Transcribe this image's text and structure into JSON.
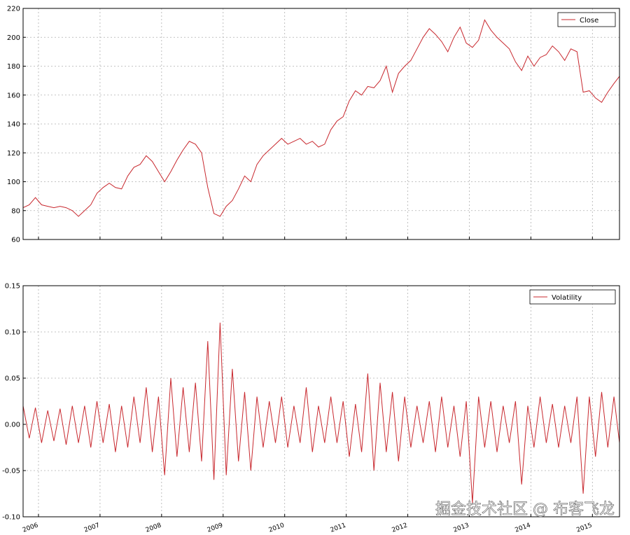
{
  "chart_data": [
    {
      "type": "line",
      "xlim": [
        2005.75,
        2015.44
      ],
      "xticks": [
        2006,
        2007,
        2008,
        2009,
        2010,
        2011,
        2012,
        2013,
        2014,
        2015
      ],
      "ylim": [
        60,
        220
      ],
      "yticks": [
        60,
        80,
        100,
        120,
        140,
        160,
        180,
        200,
        220
      ],
      "grid": true,
      "legend": "upper right",
      "series": [
        {
          "name": "Close",
          "color": "#c8282e",
          "x": [
            2005.75,
            2005.85,
            2005.95,
            2006.05,
            2006.15,
            2006.25,
            2006.35,
            2006.45,
            2006.55,
            2006.65,
            2006.75,
            2006.85,
            2006.95,
            2007.05,
            2007.15,
            2007.25,
            2007.35,
            2007.45,
            2007.55,
            2007.65,
            2007.75,
            2007.85,
            2007.95,
            2008.05,
            2008.15,
            2008.25,
            2008.35,
            2008.45,
            2008.55,
            2008.65,
            2008.75,
            2008.85,
            2008.95,
            2009.05,
            2009.15,
            2009.25,
            2009.35,
            2009.45,
            2009.55,
            2009.65,
            2009.75,
            2009.85,
            2009.95,
            2010.05,
            2010.15,
            2010.25,
            2010.35,
            2010.45,
            2010.55,
            2010.65,
            2010.75,
            2010.85,
            2010.95,
            2011.05,
            2011.15,
            2011.25,
            2011.35,
            2011.45,
            2011.55,
            2011.65,
            2011.75,
            2011.85,
            2011.95,
            2012.05,
            2012.15,
            2012.25,
            2012.35,
            2012.45,
            2012.55,
            2012.65,
            2012.75,
            2012.85,
            2012.95,
            2013.05,
            2013.15,
            2013.25,
            2013.35,
            2013.45,
            2013.55,
            2013.65,
            2013.75,
            2013.85,
            2013.95,
            2014.05,
            2014.15,
            2014.25,
            2014.35,
            2014.45,
            2014.55,
            2014.65,
            2014.75,
            2014.85,
            2014.95,
            2015.05,
            2015.15,
            2015.25,
            2015.35,
            2015.44
          ],
          "values": [
            82,
            84,
            89,
            84,
            83,
            82,
            83,
            82,
            80,
            76,
            80,
            84,
            92,
            96,
            99,
            96,
            95,
            104,
            110,
            112,
            118,
            114,
            107,
            100,
            107,
            115,
            122,
            128,
            126,
            120,
            96,
            78,
            76,
            83,
            87,
            95,
            104,
            100,
            112,
            118,
            122,
            126,
            130,
            126,
            128,
            130,
            126,
            128,
            124,
            126,
            136,
            142,
            145,
            156,
            163,
            160,
            166,
            165,
            170,
            180,
            162,
            175,
            180,
            184,
            192,
            200,
            206,
            202,
            197,
            190,
            200,
            207,
            196,
            193,
            198,
            212,
            205,
            200,
            196,
            192,
            183,
            177,
            187,
            180,
            186,
            188,
            194,
            190,
            184,
            192,
            190,
            162,
            163,
            158,
            155,
            162,
            168,
            173
          ]
        }
      ]
    },
    {
      "type": "line",
      "xlim": [
        2005.75,
        2015.44
      ],
      "xticks": [
        2006,
        2007,
        2008,
        2009,
        2010,
        2011,
        2012,
        2013,
        2014,
        2015
      ],
      "ylim": [
        -0.1,
        0.15
      ],
      "yticks": [
        {
          "value": -0.1,
          "label": "-0.10"
        },
        -0.05,
        {
          "value": 0,
          "label": "0.00"
        },
        0.05,
        {
          "value": 0.1,
          "label": "0.10"
        },
        0.15
      ],
      "grid": true,
      "legend": "upper right",
      "series": [
        {
          "name": "Volatility",
          "color": "#c8282e",
          "x": [
            2005.75,
            2005.85,
            2005.95,
            2006.05,
            2006.15,
            2006.25,
            2006.35,
            2006.45,
            2006.55,
            2006.65,
            2006.75,
            2006.85,
            2006.95,
            2007.05,
            2007.15,
            2007.25,
            2007.35,
            2007.45,
            2007.55,
            2007.65,
            2007.75,
            2007.85,
            2007.95,
            2008.05,
            2008.15,
            2008.25,
            2008.35,
            2008.45,
            2008.55,
            2008.65,
            2008.75,
            2008.85,
            2008.95,
            2009.05,
            2009.15,
            2009.25,
            2009.35,
            2009.45,
            2009.55,
            2009.65,
            2009.75,
            2009.85,
            2009.95,
            2010.05,
            2010.15,
            2010.25,
            2010.35,
            2010.45,
            2010.55,
            2010.65,
            2010.75,
            2010.85,
            2010.95,
            2011.05,
            2011.15,
            2011.25,
            2011.35,
            2011.45,
            2011.55,
            2011.65,
            2011.75,
            2011.85,
            2011.95,
            2012.05,
            2012.15,
            2012.25,
            2012.35,
            2012.45,
            2012.55,
            2012.65,
            2012.75,
            2012.85,
            2012.95,
            2013.05,
            2013.15,
            2013.25,
            2013.35,
            2013.45,
            2013.55,
            2013.65,
            2013.75,
            2013.85,
            2013.95,
            2014.05,
            2014.15,
            2014.25,
            2014.35,
            2014.45,
            2014.55,
            2014.65,
            2014.75,
            2014.85,
            2014.95,
            2015.05,
            2015.15,
            2015.25,
            2015.35,
            2015.44
          ],
          "values": [
            0.02,
            -0.015,
            0.018,
            -0.02,
            0.015,
            -0.018,
            0.017,
            -0.022,
            0.02,
            -0.02,
            0.02,
            -0.025,
            0.025,
            -0.02,
            0.022,
            -0.03,
            0.02,
            -0.025,
            0.03,
            -0.02,
            0.04,
            -0.03,
            0.03,
            -0.055,
            0.05,
            -0.035,
            0.04,
            -0.03,
            0.045,
            -0.04,
            0.09,
            -0.06,
            0.11,
            -0.055,
            0.06,
            -0.04,
            0.035,
            -0.05,
            0.03,
            -0.025,
            0.025,
            -0.02,
            0.03,
            -0.025,
            0.02,
            -0.02,
            0.04,
            -0.03,
            0.02,
            -0.02,
            0.03,
            -0.02,
            0.025,
            -0.035,
            0.022,
            -0.03,
            0.055,
            -0.05,
            0.045,
            -0.03,
            0.035,
            -0.04,
            0.03,
            -0.025,
            0.02,
            -0.02,
            0.025,
            -0.03,
            0.03,
            -0.025,
            0.02,
            -0.035,
            0.025,
            -0.085,
            0.03,
            -0.025,
            0.025,
            -0.03,
            0.02,
            -0.02,
            0.025,
            -0.065,
            0.02,
            -0.025,
            0.03,
            -0.02,
            0.022,
            -0.025,
            0.02,
            -0.02,
            0.03,
            -0.075,
            0.03,
            -0.035,
            0.035,
            -0.025,
            0.03,
            -0.02
          ]
        }
      ]
    }
  ],
  "watermark": "掘金技术社区 @ 布客飞龙"
}
